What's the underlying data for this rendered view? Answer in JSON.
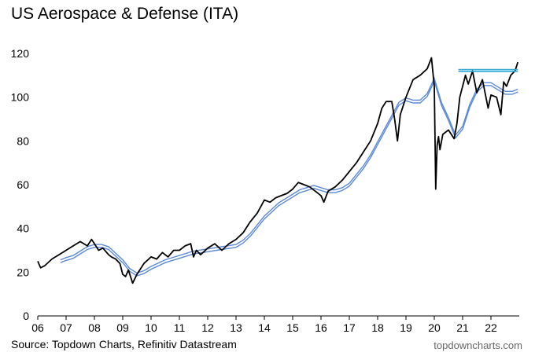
{
  "chart_data": {
    "type": "line",
    "title": "US Aerospace & Defense (ITA)",
    "xlabel": "",
    "ylabel": "",
    "xlim": [
      2006.0,
      2023.0
    ],
    "ylim": [
      0,
      120
    ],
    "yticks": [
      0,
      20,
      40,
      60,
      80,
      100,
      120
    ],
    "xtick_labels": [
      "06",
      "07",
      "08",
      "09",
      "10",
      "11",
      "12",
      "13",
      "14",
      "15",
      "16",
      "17",
      "18",
      "19",
      "20",
      "21",
      "22"
    ],
    "series": [
      {
        "role": "price",
        "color": "#000000",
        "x": [
          2006.0,
          2006.1,
          2006.25,
          2006.5,
          2006.75,
          2007.0,
          2007.25,
          2007.5,
          2007.75,
          2007.9,
          2008.0,
          2008.15,
          2008.3,
          2008.5,
          2008.6,
          2008.75,
          2008.9,
          2009.0,
          2009.1,
          2009.2,
          2009.35,
          2009.5,
          2009.75,
          2010.0,
          2010.2,
          2010.4,
          2010.6,
          2010.8,
          2011.0,
          2011.2,
          2011.4,
          2011.5,
          2011.6,
          2011.75,
          2012.0,
          2012.25,
          2012.5,
          2012.75,
          2013.0,
          2013.25,
          2013.5,
          2013.75,
          2014.0,
          2014.2,
          2014.4,
          2014.6,
          2014.8,
          2015.0,
          2015.2,
          2015.4,
          2015.6,
          2015.8,
          2016.0,
          2016.1,
          2016.25,
          2016.5,
          2016.75,
          2017.0,
          2017.25,
          2017.5,
          2017.75,
          2018.0,
          2018.15,
          2018.3,
          2018.5,
          2018.6,
          2018.7,
          2018.8,
          2018.9,
          2019.0,
          2019.25,
          2019.5,
          2019.75,
          2019.9,
          2020.0,
          2020.05,
          2020.1,
          2020.15,
          2020.2,
          2020.3,
          2020.5,
          2020.7,
          2020.8,
          2020.9,
          2021.0,
          2021.1,
          2021.2,
          2021.35,
          2021.5,
          2021.7,
          2021.9,
          2022.0,
          2022.2,
          2022.35,
          2022.45,
          2022.55,
          2022.7,
          2022.85,
          2022.95
        ],
        "y": [
          25,
          22,
          23,
          26,
          28,
          30,
          32,
          34,
          32,
          35,
          33,
          30,
          31,
          28,
          27,
          26,
          24,
          19,
          18,
          21,
          15,
          19,
          24,
          27,
          26,
          29,
          27,
          30,
          30,
          32,
          33,
          27,
          30,
          28,
          31,
          33,
          30,
          33,
          35,
          38,
          43,
          47,
          53,
          52,
          54,
          55,
          56,
          58,
          61,
          60,
          59,
          57,
          55,
          52,
          57,
          59,
          62,
          66,
          70,
          75,
          80,
          88,
          95,
          98,
          98,
          90,
          80,
          92,
          96,
          100,
          108,
          110,
          113,
          118,
          105,
          58,
          78,
          82,
          76,
          83,
          85,
          81,
          88,
          100,
          105,
          110,
          106,
          112,
          102,
          108,
          95,
          101,
          100,
          92,
          107,
          105,
          110,
          112,
          116
        ]
      },
      {
        "role": "moving-average",
        "color": "#5a8ad6",
        "x": [
          2006.8,
          2007.0,
          2007.25,
          2007.5,
          2007.75,
          2008.0,
          2008.25,
          2008.5,
          2008.75,
          2009.0,
          2009.25,
          2009.5,
          2009.75,
          2010.0,
          2010.5,
          2011.0,
          2011.5,
          2012.0,
          2012.5,
          2013.0,
          2013.25,
          2013.5,
          2013.75,
          2014.0,
          2014.25,
          2014.5,
          2014.75,
          2015.0,
          2015.25,
          2015.5,
          2015.75,
          2016.0,
          2016.25,
          2016.5,
          2016.75,
          2017.0,
          2017.25,
          2017.5,
          2017.75,
          2018.0,
          2018.25,
          2018.5,
          2018.75,
          2019.0,
          2019.25,
          2019.5,
          2019.75,
          2020.0,
          2020.25,
          2020.5,
          2020.75,
          2021.0,
          2021.25,
          2021.5,
          2021.75,
          2022.0,
          2022.25,
          2022.5,
          2022.75,
          2022.95
        ],
        "y": [
          25,
          26,
          27,
          29,
          31,
          32,
          32,
          31,
          28,
          25,
          21,
          19,
          20,
          22,
          25,
          27,
          29,
          30,
          31,
          32,
          34,
          37,
          41,
          45,
          48,
          51,
          53,
          55,
          57,
          58,
          59,
          58,
          57,
          57,
          58,
          60,
          64,
          68,
          73,
          79,
          85,
          91,
          97,
          99,
          98,
          98,
          101,
          108,
          97,
          90,
          82,
          86,
          96,
          103,
          106,
          106,
          104,
          102,
          102,
          103
        ]
      }
    ],
    "resistance": {
      "color": "#33a8d6",
      "y": [
        111.8,
        112.6
      ],
      "x_start": 2020.85,
      "x_end": 2022.95
    }
  },
  "footer": {
    "source": "Source: Topdown Charts, Refinitiv Datastream",
    "site": "topdowncharts.com"
  }
}
